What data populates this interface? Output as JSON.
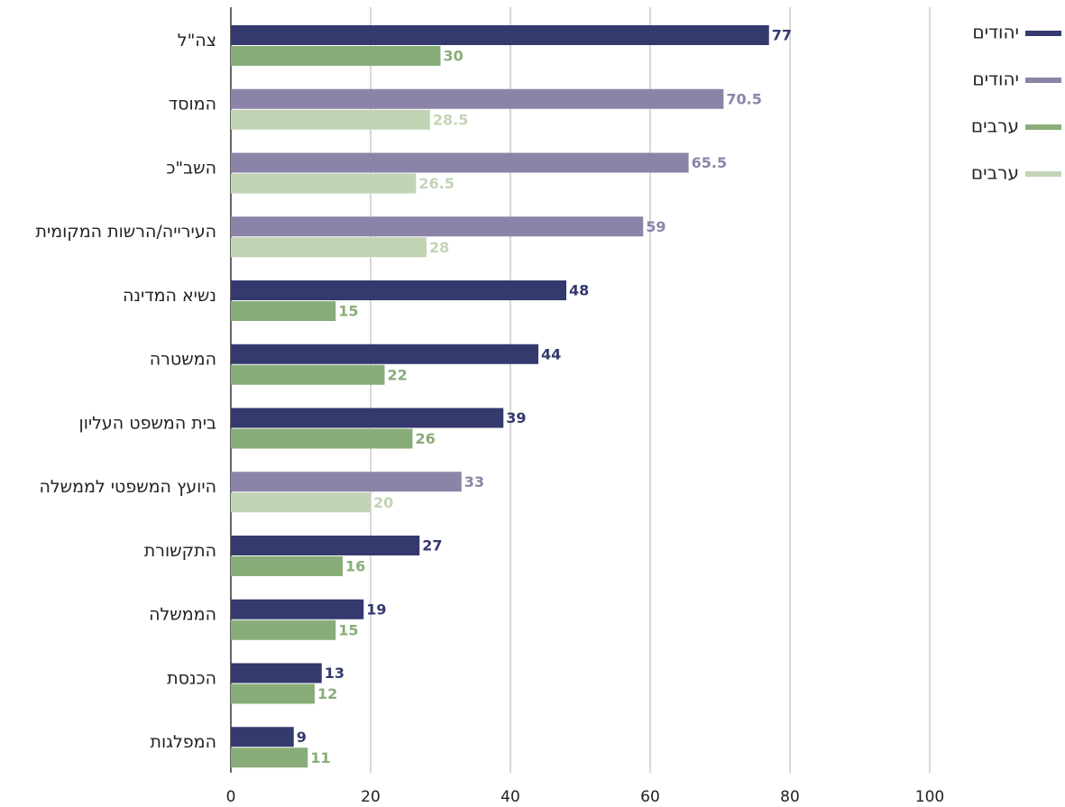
{
  "chart_data": {
    "type": "bar",
    "orientation": "horizontal",
    "categories": [
      "צה\"ל",
      "המוסד",
      "השב\"כ",
      "העירייה/הרשות המקומית",
      "נשיא המדינה",
      "המשטרה",
      "בית המשפט העליון",
      "היועץ המשפטי לממשלה",
      "התקשורת",
      "הממשלה",
      "הכנסת",
      "המפלגות"
    ],
    "series": [
      {
        "name": "יהודים",
        "color": "#343a6e",
        "values": [
          77,
          null,
          null,
          null,
          48,
          44,
          39,
          null,
          27,
          19,
          13,
          9
        ]
      },
      {
        "name": "יהודים",
        "color": "#8c84a8",
        "values": [
          null,
          70.5,
          65.5,
          59,
          null,
          null,
          null,
          33,
          null,
          null,
          null,
          null
        ]
      },
      {
        "name": "ערבים",
        "color": "#89ad78",
        "values": [
          30,
          null,
          null,
          null,
          15,
          22,
          26,
          null,
          16,
          15,
          12,
          11
        ]
      },
      {
        "name": "ערבים",
        "color": "#c2d4b6",
        "values": [
          null,
          28.5,
          26.5,
          28,
          null,
          null,
          null,
          20,
          null,
          null,
          null,
          null
        ]
      }
    ],
    "xlim": [
      0,
      100
    ],
    "xticks": [
      0,
      20,
      40,
      60,
      80,
      100
    ],
    "grid": true,
    "legend": "top-right"
  }
}
